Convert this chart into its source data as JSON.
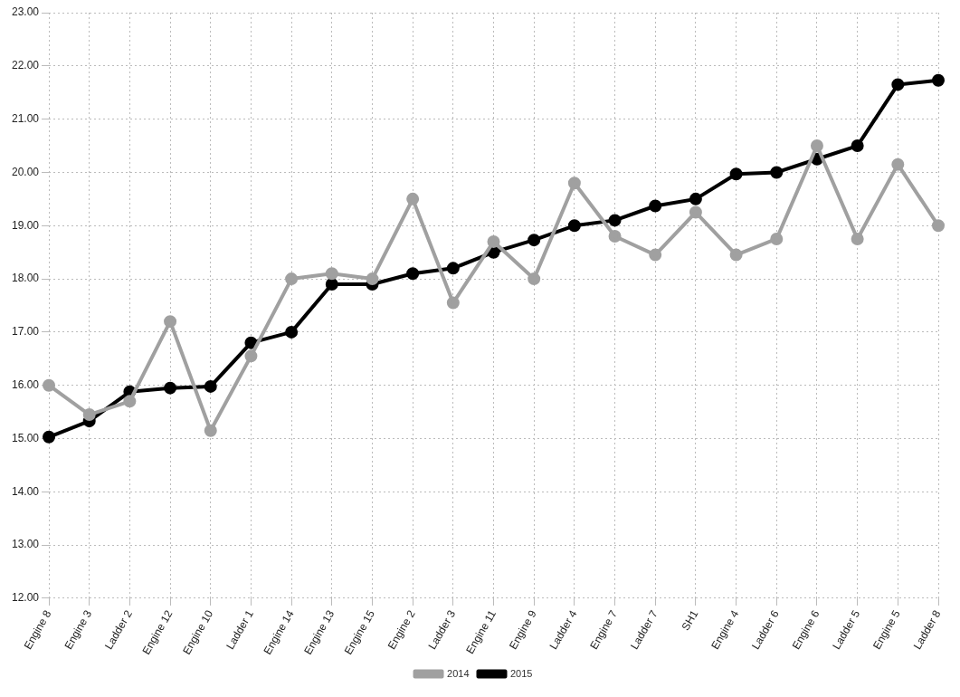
{
  "chart_data": {
    "type": "line",
    "categories": [
      "Engine 8",
      "Engine 3",
      "Ladder 2",
      "Engine 12",
      "Engine 10",
      "Ladder 1",
      "Engine 14",
      "Engine 13",
      "Engine 15",
      "Engine 2",
      "Ladder 3",
      "Engine 11",
      "Engine 9",
      "Ladder 4",
      "Engine 7",
      "Ladder 7",
      "SH1",
      "Engine 4",
      "Ladder 6",
      "Engine 6",
      "Ladder 5",
      "Engine 5",
      "Ladder 8"
    ],
    "series": [
      {
        "name": "2014",
        "color": "#a0a0a0",
        "values": [
          16.0,
          15.45,
          15.7,
          17.2,
          15.15,
          16.55,
          18.0,
          18.1,
          18.0,
          19.5,
          17.55,
          18.7,
          18.0,
          19.8,
          18.8,
          18.45,
          19.25,
          18.45,
          18.75,
          20.5,
          18.75,
          20.15,
          19.0
        ]
      },
      {
        "name": "2015",
        "color": "#000000",
        "values": [
          15.03,
          15.33,
          15.88,
          15.95,
          15.98,
          16.8,
          17.0,
          17.9,
          17.9,
          18.1,
          18.2,
          18.5,
          18.73,
          19.0,
          19.1,
          19.37,
          19.5,
          19.97,
          20.0,
          20.25,
          20.5,
          21.65,
          21.73
        ]
      }
    ],
    "ylim": [
      12,
      23
    ],
    "yticks": [
      {
        "value": 12,
        "label": "12.00"
      },
      {
        "value": 13,
        "label": "13.00"
      },
      {
        "value": 14,
        "label": "14.00"
      },
      {
        "value": 15,
        "label": "15.00"
      },
      {
        "value": 16,
        "label": "16.00"
      },
      {
        "value": 17,
        "label": "17.00"
      },
      {
        "value": 18,
        "label": "18.00"
      },
      {
        "value": 19,
        "label": "19.00"
      },
      {
        "value": 20,
        "label": "20.00"
      },
      {
        "value": 21,
        "label": "21.00"
      },
      {
        "value": 22,
        "label": "22.00"
      },
      {
        "value": 23,
        "label": "23.00"
      }
    ],
    "grid": true,
    "legend": "bottom",
    "marker": "circle",
    "line_style": "solid"
  }
}
